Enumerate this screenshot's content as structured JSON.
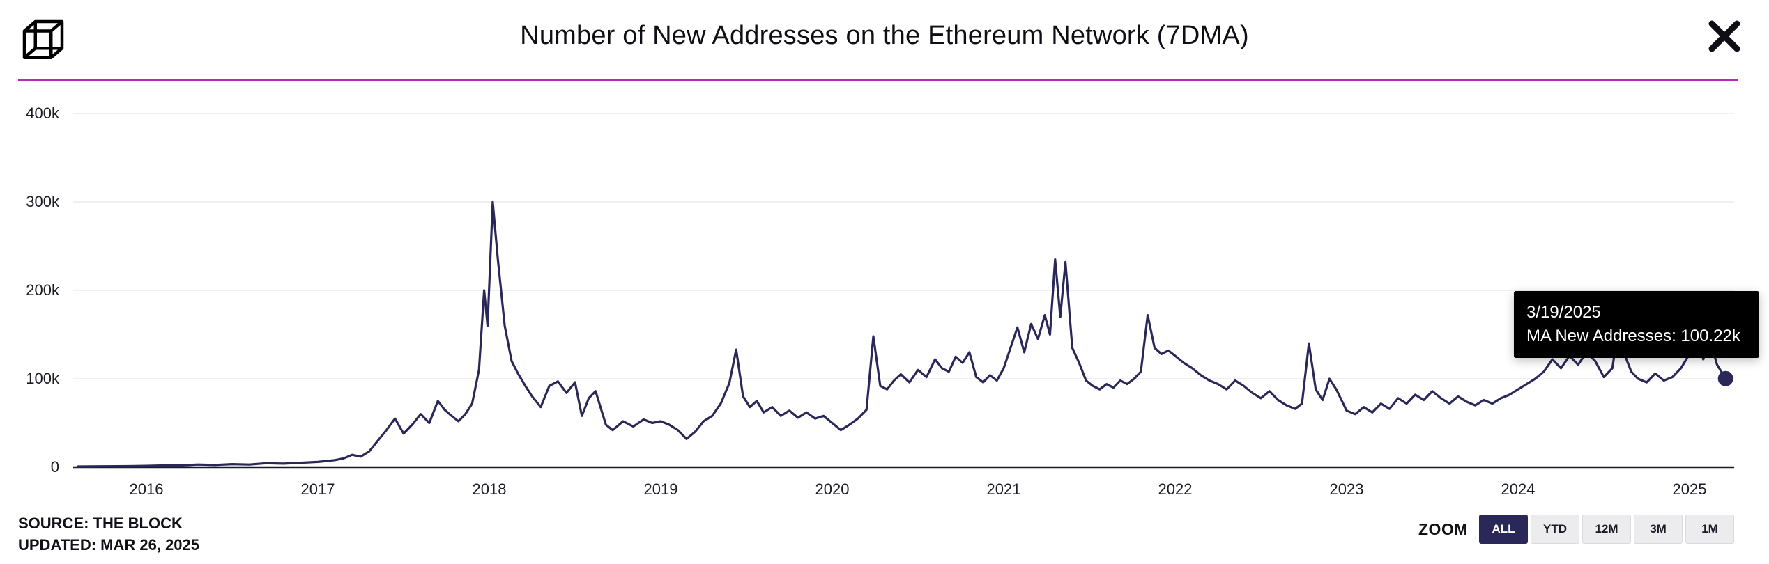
{
  "header": {
    "title": "Number of New Addresses on the Ethereum Network (7DMA)",
    "logo": "the-block-logo"
  },
  "colors": {
    "accent_divider": "#b42db8",
    "line": "#2a2859",
    "tooltip_bg": "#000000",
    "background": "#ffffff"
  },
  "tooltip": {
    "date": "3/19/2025",
    "text": "MA New Addresses: 100.22k"
  },
  "footer": {
    "source": "SOURCE: THE BLOCK",
    "updated": "UPDATED: MAR 26, 2025"
  },
  "zoom": {
    "label": "ZOOM",
    "options": [
      "ALL",
      "YTD",
      "12M",
      "3M",
      "1M"
    ],
    "selected": "ALL"
  },
  "chart_data": {
    "type": "line",
    "title": "Number of New Addresses on the Ethereum Network (7DMA)",
    "series_name": "MA New Addresses",
    "ylabel": "",
    "xlabel": "",
    "unit": "thousands of addresses",
    "ylim": [
      0,
      400
    ],
    "grid": true,
    "legend": "none",
    "last_point": {
      "date": "3/19/2025",
      "value_k": 100.22
    },
    "y_ticks": [
      {
        "label": "0",
        "value": 0
      },
      {
        "label": "100k",
        "value": 100
      },
      {
        "label": "200k",
        "value": 200
      },
      {
        "label": "300k",
        "value": 300
      },
      {
        "label": "400k",
        "value": 400
      }
    ],
    "x_ticks": [
      "2016",
      "2017",
      "2018",
      "2019",
      "2020",
      "2021",
      "2022",
      "2023",
      "2024",
      "2025"
    ],
    "x": [
      2015.6,
      2015.75,
      2015.9,
      2016.0,
      2016.1,
      2016.2,
      2016.3,
      2016.4,
      2016.5,
      2016.6,
      2016.7,
      2016.8,
      2016.9,
      2017.0,
      2017.05,
      2017.1,
      2017.15,
      2017.2,
      2017.25,
      2017.3,
      2017.35,
      2017.4,
      2017.45,
      2017.5,
      2017.55,
      2017.6,
      2017.65,
      2017.7,
      2017.74,
      2017.78,
      2017.82,
      2017.86,
      2017.9,
      2017.94,
      2017.97,
      2017.99,
      2018.02,
      2018.05,
      2018.09,
      2018.13,
      2018.17,
      2018.21,
      2018.25,
      2018.3,
      2018.35,
      2018.4,
      2018.45,
      2018.5,
      2018.54,
      2018.58,
      2018.62,
      2018.68,
      2018.72,
      2018.78,
      2018.84,
      2018.9,
      2018.95,
      2019.0,
      2019.05,
      2019.1,
      2019.15,
      2019.2,
      2019.25,
      2019.3,
      2019.35,
      2019.4,
      2019.44,
      2019.48,
      2019.52,
      2019.56,
      2019.6,
      2019.65,
      2019.7,
      2019.75,
      2019.8,
      2019.85,
      2019.9,
      2019.95,
      2020.0,
      2020.05,
      2020.1,
      2020.15,
      2020.2,
      2020.24,
      2020.28,
      2020.32,
      2020.36,
      2020.4,
      2020.45,
      2020.5,
      2020.55,
      2020.6,
      2020.64,
      2020.68,
      2020.72,
      2020.76,
      2020.8,
      2020.84,
      2020.88,
      2020.92,
      2020.96,
      2021.0,
      2021.04,
      2021.08,
      2021.12,
      2021.16,
      2021.2,
      2021.24,
      2021.27,
      2021.3,
      2021.33,
      2021.36,
      2021.4,
      2021.44,
      2021.48,
      2021.52,
      2021.56,
      2021.6,
      2021.64,
      2021.68,
      2021.72,
      2021.76,
      2021.8,
      2021.84,
      2021.88,
      2021.92,
      2021.96,
      2022.0,
      2022.05,
      2022.1,
      2022.15,
      2022.2,
      2022.25,
      2022.3,
      2022.35,
      2022.4,
      2022.45,
      2022.5,
      2022.55,
      2022.6,
      2022.65,
      2022.7,
      2022.74,
      2022.78,
      2022.82,
      2022.86,
      2022.9,
      2022.94,
      2023.0,
      2023.05,
      2023.1,
      2023.15,
      2023.2,
      2023.25,
      2023.3,
      2023.35,
      2023.4,
      2023.45,
      2023.5,
      2023.55,
      2023.6,
      2023.65,
      2023.7,
      2023.75,
      2023.8,
      2023.85,
      2023.9,
      2023.95,
      2024.0,
      2024.05,
      2024.1,
      2024.15,
      2024.2,
      2024.25,
      2024.3,
      2024.35,
      2024.4,
      2024.45,
      2024.5,
      2024.55,
      2024.58,
      2024.62,
      2024.66,
      2024.7,
      2024.75,
      2024.8,
      2024.85,
      2024.9,
      2024.95,
      2025.0,
      2025.04,
      2025.08,
      2025.12,
      2025.16,
      2025.21
    ],
    "values": [
      0.8,
      1,
      1.2,
      1.5,
      2,
      2,
      3,
      2.5,
      3.5,
      3,
      4.5,
      4,
      5,
      6,
      7,
      8,
      10,
      14,
      12,
      18,
      30,
      42,
      55,
      38,
      48,
      60,
      50,
      75,
      65,
      58,
      52,
      60,
      72,
      110,
      200,
      160,
      300,
      235,
      160,
      120,
      105,
      92,
      80,
      68,
      92,
      97,
      84,
      96,
      58,
      78,
      86,
      48,
      42,
      52,
      46,
      54,
      50,
      52,
      48,
      42,
      32,
      40,
      52,
      58,
      72,
      95,
      133,
      80,
      68,
      75,
      62,
      68,
      58,
      64,
      56,
      62,
      55,
      58,
      50,
      42,
      48,
      55,
      65,
      148,
      92,
      88,
      98,
      105,
      96,
      110,
      102,
      122,
      112,
      108,
      125,
      118,
      130,
      102,
      96,
      104,
      98,
      112,
      135,
      158,
      130,
      162,
      145,
      172,
      150,
      235,
      170,
      232,
      135,
      118,
      98,
      92,
      88,
      94,
      90,
      98,
      94,
      100,
      108,
      172,
      135,
      128,
      132,
      126,
      118,
      112,
      104,
      98,
      94,
      88,
      98,
      92,
      84,
      78,
      86,
      76,
      70,
      66,
      72,
      140,
      88,
      76,
      100,
      88,
      64,
      60,
      68,
      62,
      72,
      66,
      78,
      72,
      82,
      76,
      86,
      78,
      72,
      80,
      74,
      70,
      76,
      72,
      78,
      82,
      88,
      94,
      100,
      108,
      122,
      112,
      126,
      116,
      130,
      120,
      102,
      112,
      152,
      128,
      108,
      100,
      96,
      106,
      98,
      102,
      112,
      128,
      156,
      122,
      144,
      116,
      100.22
    ]
  }
}
